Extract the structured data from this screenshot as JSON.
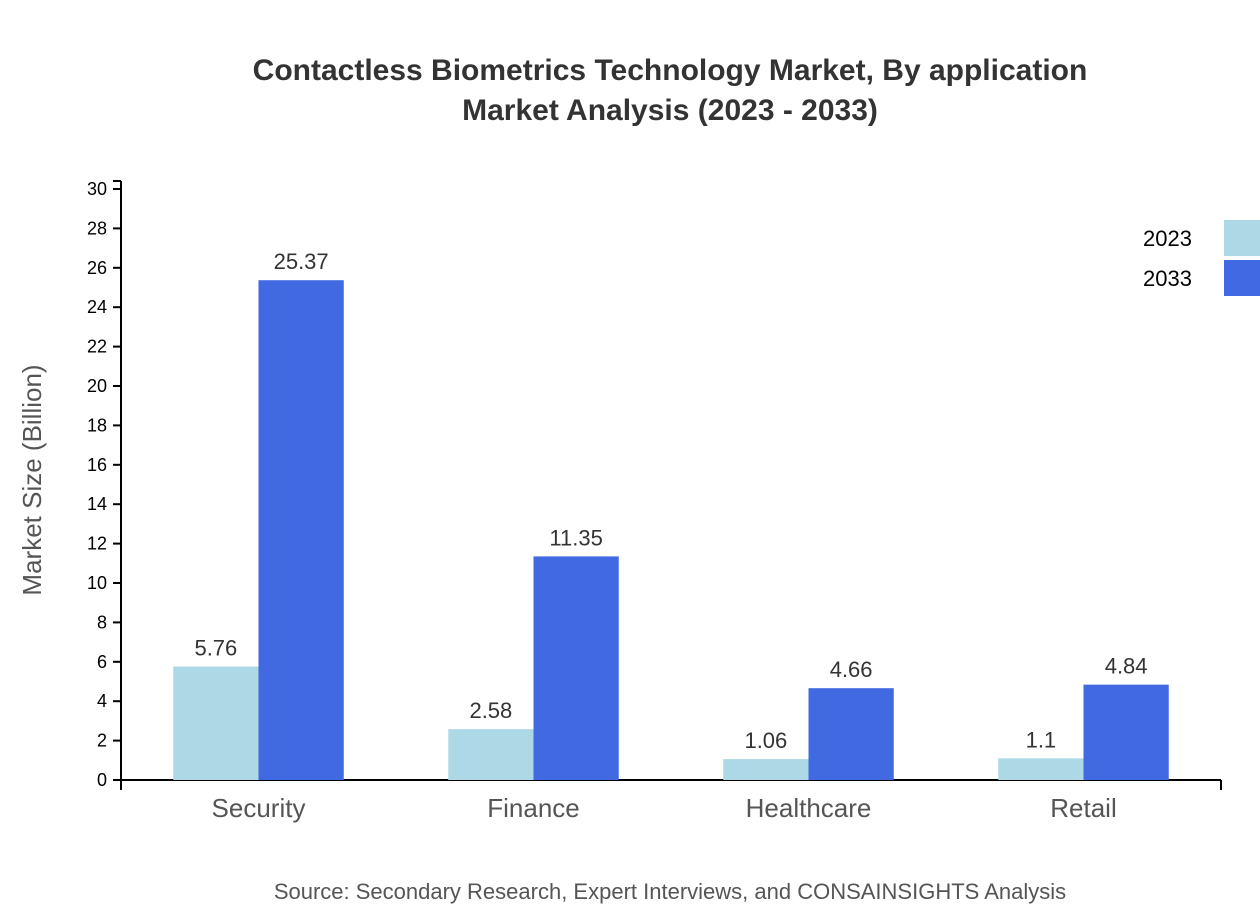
{
  "chart_data": {
    "type": "bar",
    "title": "Contactless Biometrics Technology Market, By application",
    "subtitle": "Market Analysis (2023 - 2033)",
    "xlabel": "",
    "ylabel": "Market Size (Billion)",
    "ylim": [
      0,
      30
    ],
    "yticks": [
      0,
      2,
      4,
      6,
      8,
      10,
      12,
      14,
      16,
      18,
      20,
      22,
      24,
      26,
      28,
      30
    ],
    "categories": [
      "Security",
      "Finance",
      "Healthcare",
      "Retail"
    ],
    "series": [
      {
        "name": "2023",
        "color": "#add8e6",
        "values": [
          5.76,
          2.58,
          1.06,
          1.1
        ],
        "labels": [
          "5.76",
          "2.58",
          "1.06",
          "1.1"
        ]
      },
      {
        "name": "2033",
        "color": "#4169e1",
        "values": [
          25.37,
          11.35,
          4.66,
          4.84
        ],
        "labels": [
          "25.37",
          "11.35",
          "4.66",
          "4.84"
        ]
      }
    ],
    "grid": false,
    "legend_position": "top-right",
    "source": "Source: Secondary Research, Expert Interviews, and CONSAINSIGHTS Analysis"
  }
}
